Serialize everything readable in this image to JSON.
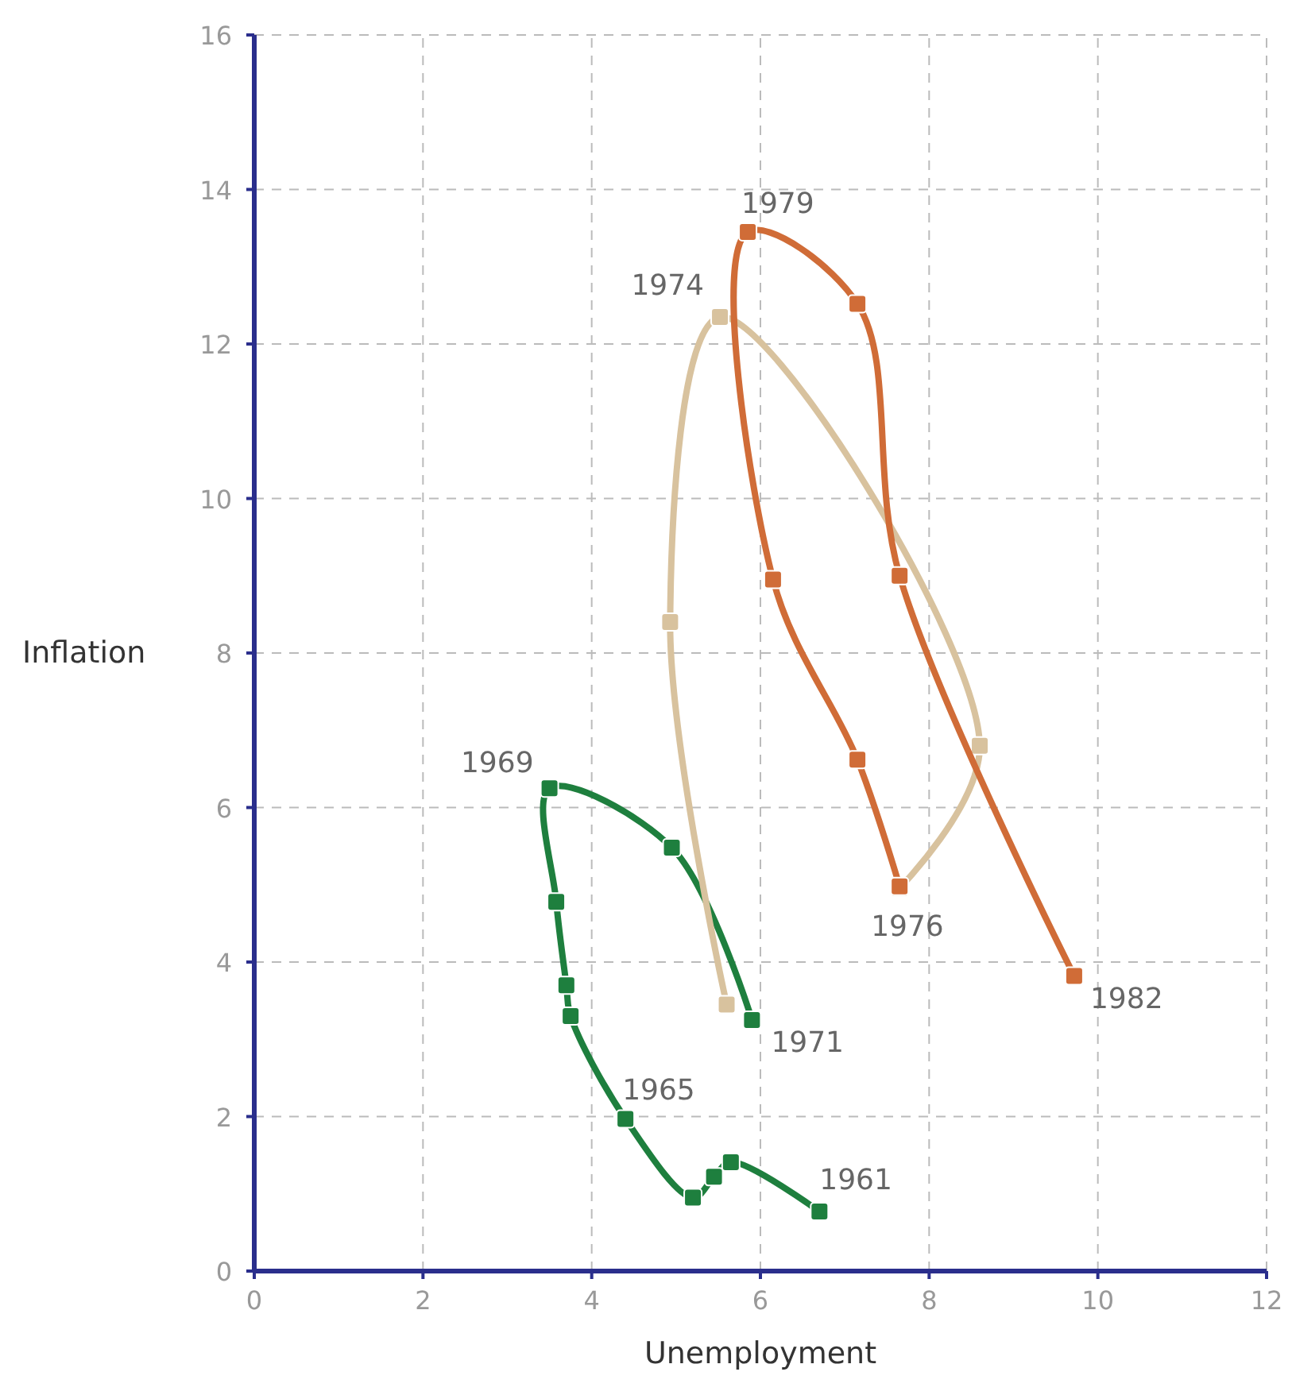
{
  "chart_data": {
    "type": "line",
    "xlabel": "Unemployment",
    "ylabel": "Inflation",
    "xlim": [
      0,
      12
    ],
    "ylim": [
      0,
      16
    ],
    "xticks": [
      0,
      2,
      4,
      6,
      8,
      10,
      12
    ],
    "yticks": [
      0,
      2,
      4,
      6,
      8,
      10,
      12,
      14,
      16
    ],
    "grid": true,
    "marker": "square",
    "line_style": "solid",
    "series": [
      {
        "color": "#1e7f3e",
        "x": [
          6.7,
          5.65,
          5.45,
          5.2,
          4.4,
          3.75,
          3.7,
          3.58,
          3.5,
          4.95,
          5.9
        ],
        "values": [
          0.77,
          1.41,
          1.22,
          0.95,
          1.97,
          3.3,
          3.7,
          4.78,
          6.25,
          5.48,
          3.25
        ]
      },
      {
        "color": "#d8c29e",
        "x": [
          5.6,
          4.93,
          5.52,
          8.6,
          7.65
        ],
        "values": [
          3.45,
          8.4,
          12.35,
          6.8,
          4.96
        ]
      },
      {
        "color": "#d06c37",
        "x": [
          7.65,
          7.15,
          6.15,
          5.85,
          7.15,
          7.65,
          9.72
        ],
        "values": [
          4.98,
          6.62,
          8.95,
          13.45,
          12.52,
          9.0,
          3.82
        ]
      }
    ],
    "annotations": [
      {
        "text": "1961",
        "x": 6.7,
        "y": 0.77
      },
      {
        "text": "1965",
        "x": 4.4,
        "y": 1.97
      },
      {
        "text": "1969",
        "x": 3.5,
        "y": 6.25
      },
      {
        "text": "1971",
        "x": 5.9,
        "y": 3.25
      },
      {
        "text": "1974",
        "x": 5.52,
        "y": 12.35
      },
      {
        "text": "1976",
        "x": 7.65,
        "y": 4.96
      },
      {
        "text": "1979",
        "x": 5.85,
        "y": 13.45
      },
      {
        "text": "1982",
        "x": 9.72,
        "y": 3.82
      }
    ]
  }
}
